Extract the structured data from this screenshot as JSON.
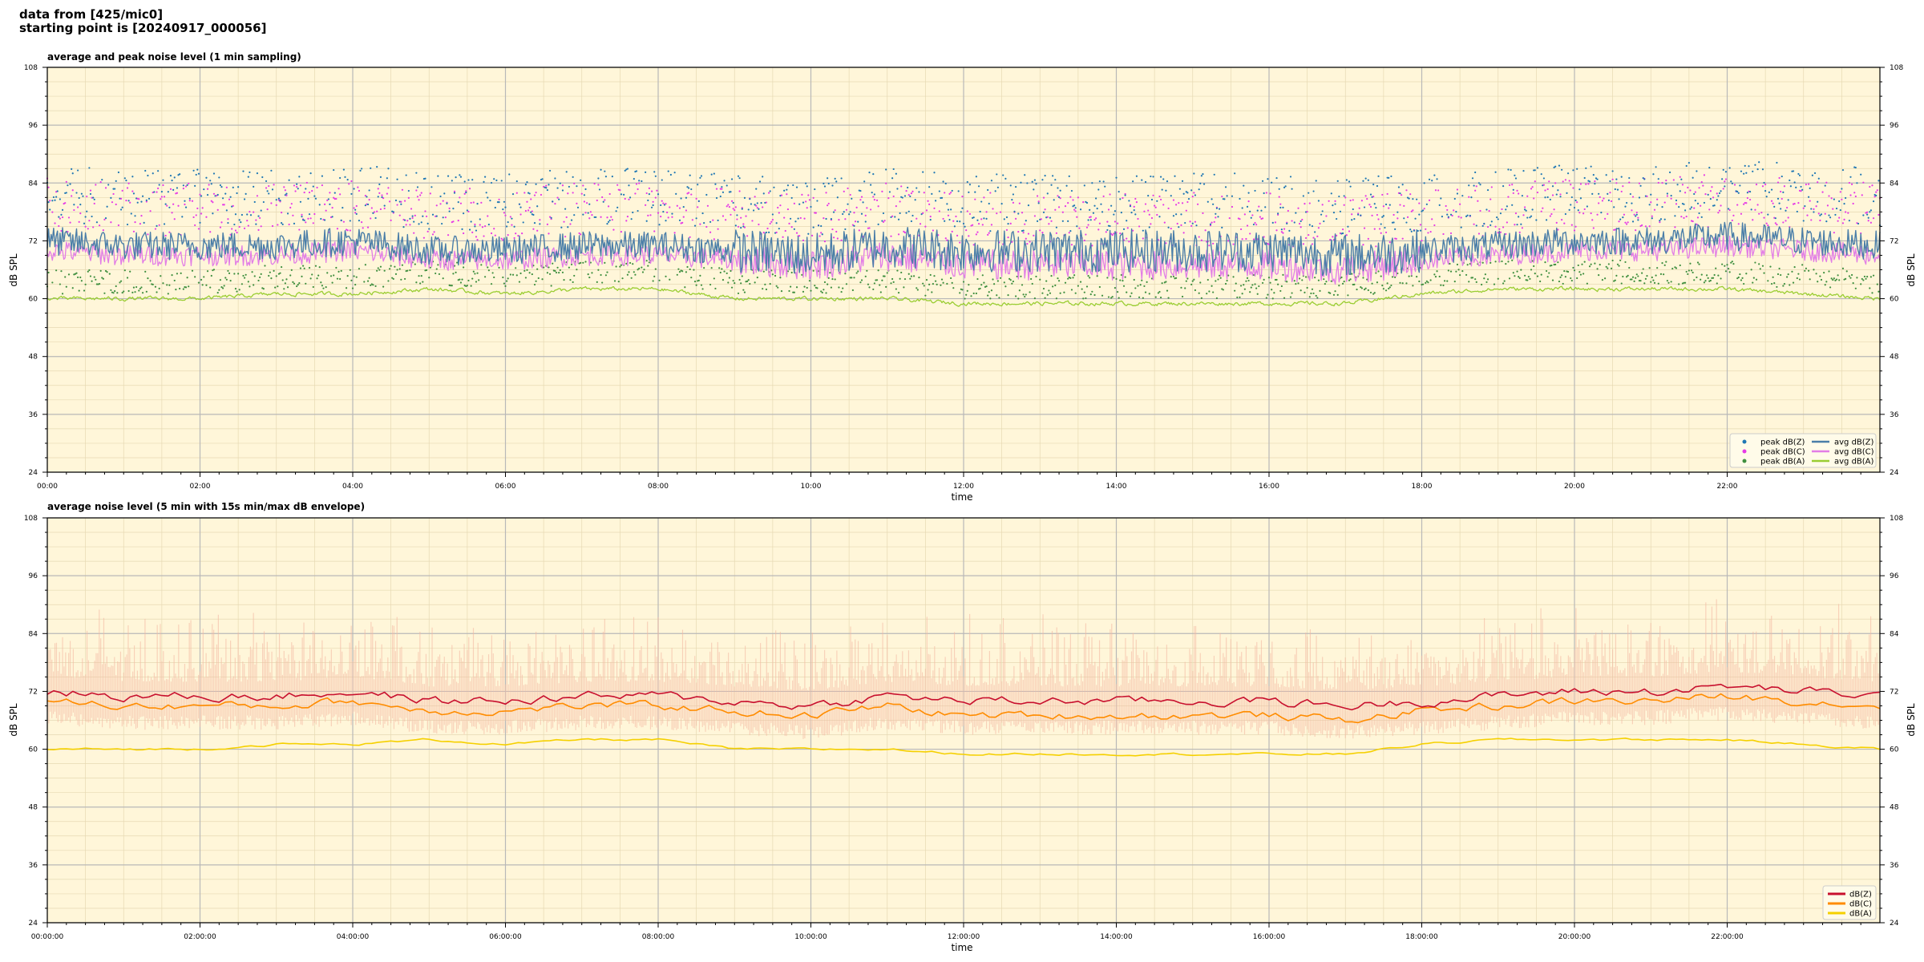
{
  "header": {
    "line1": "data from [425/mic0]",
    "line2": "starting point is [20240917_000056]"
  },
  "chart_data": [
    {
      "type": "line",
      "title": "average and peak noise level (1 min sampling)",
      "xlabel": "time",
      "ylabel": "dB SPL",
      "ylim": [
        24,
        108
      ],
      "yticks": [
        24,
        36,
        48,
        60,
        72,
        84,
        96,
        108
      ],
      "xlim_hours": [
        0,
        24
      ],
      "xticks": [
        "00:00",
        "02:00",
        "04:00",
        "06:00",
        "08:00",
        "10:00",
        "12:00",
        "14:00",
        "16:00",
        "18:00",
        "20:00",
        "22:00"
      ],
      "grid": true,
      "legend_position": "bottom-right",
      "colors": {
        "background": "#fff6d9",
        "peakZ": "#1f77b4",
        "peakC": "#e639e6",
        "peakA": "#3f8f3f",
        "avgZ": "#4a7ea8",
        "avgC": "#e27de6",
        "avgA": "#9acd32"
      },
      "series_summary": [
        {
          "name": "peak dB(Z)",
          "kind": "points",
          "typical_range": [
            74,
            89
          ]
        },
        {
          "name": "peak dB(C)",
          "kind": "points",
          "typical_range": [
            72,
            86
          ]
        },
        {
          "name": "peak dB(A)",
          "kind": "points",
          "typical_range": [
            60,
            67
          ]
        },
        {
          "name": "avg dB(Z)",
          "kind": "line",
          "typical_range": [
            66,
            79
          ]
        },
        {
          "name": "avg dB(C)",
          "kind": "line",
          "typical_range": [
            65,
            76
          ]
        },
        {
          "name": "avg dB(A)",
          "kind": "line",
          "typical_range": [
            58,
            64
          ]
        }
      ],
      "hourly_avg": {
        "hours": [
          0,
          1,
          2,
          3,
          4,
          5,
          6,
          7,
          8,
          9,
          10,
          11,
          12,
          13,
          14,
          15,
          16,
          17,
          18,
          19,
          20,
          21,
          22,
          23,
          24
        ],
        "avgZ": [
          72,
          71,
          71,
          71,
          72,
          70,
          70,
          71,
          71,
          70,
          69,
          71,
          70,
          70,
          70,
          70,
          70,
          69,
          70,
          71,
          72,
          72,
          73,
          72,
          71
        ],
        "avgC": [
          70,
          69,
          69,
          69,
          70,
          68,
          68,
          69,
          69,
          68,
          67,
          69,
          67,
          67,
          67,
          67,
          67,
          66,
          68,
          69,
          70,
          70,
          71,
          70,
          69
        ],
        "avgA": [
          60,
          60,
          60,
          61,
          61,
          62,
          61,
          62,
          62,
          60,
          60,
          60,
          59,
          59,
          59,
          59,
          59,
          59,
          61,
          62,
          62,
          62,
          62,
          61,
          60
        ]
      },
      "legend": {
        "peakZ": "peak dB(Z)",
        "peakC": "peak dB(C)",
        "peakA": "peak dB(A)",
        "avgZ": "avg dB(Z)",
        "avgC": "avg dB(C)",
        "avgA": "avg dB(A)"
      }
    },
    {
      "type": "area",
      "title": "average noise level (5 min with 15s min/max dB envelope)",
      "xlabel": "time",
      "ylabel": "dB SPL",
      "ylim": [
        24,
        108
      ],
      "yticks": [
        24,
        36,
        48,
        60,
        72,
        84,
        96,
        108
      ],
      "xlim_hours": [
        0,
        24
      ],
      "xticks": [
        "00:00:00",
        "02:00:00",
        "04:00:00",
        "06:00:00",
        "08:00:00",
        "10:00:00",
        "12:00:00",
        "14:00:00",
        "16:00:00",
        "18:00:00",
        "20:00:00",
        "22:00:00"
      ],
      "grid": true,
      "legend_position": "bottom-right",
      "colors": {
        "background": "#fff6d9",
        "envelope": "#f4b9a3",
        "dBZ": "#c8102e",
        "dBC": "#ff8c00",
        "dBA": "#f5d000"
      },
      "envelope_range": [
        64,
        89
      ],
      "hourly_avg": {
        "hours": [
          0,
          1,
          2,
          3,
          4,
          5,
          6,
          7,
          8,
          9,
          10,
          11,
          12,
          13,
          14,
          15,
          16,
          17,
          18,
          19,
          20,
          21,
          22,
          23,
          24
        ],
        "dBZ": [
          72,
          71,
          71,
          71,
          72,
          70,
          70,
          71,
          71,
          70,
          69,
          71,
          70,
          70,
          70,
          70,
          70,
          69,
          70,
          71,
          72,
          72,
          73,
          72,
          71
        ],
        "dBC": [
          70,
          69,
          69,
          69,
          70,
          68,
          68,
          69,
          69,
          68,
          67,
          69,
          67,
          67,
          67,
          67,
          67,
          66,
          68,
          69,
          70,
          70,
          71,
          70,
          69
        ],
        "dBA": [
          60,
          60,
          60,
          61,
          61,
          62,
          61,
          62,
          62,
          60,
          60,
          60,
          59,
          59,
          59,
          59,
          59,
          59,
          61,
          62,
          62,
          62,
          62,
          61,
          60
        ]
      },
      "legend": {
        "dBZ": "dB(Z)",
        "dBC": "dB(C)",
        "dBA": "dB(A)"
      }
    }
  ]
}
